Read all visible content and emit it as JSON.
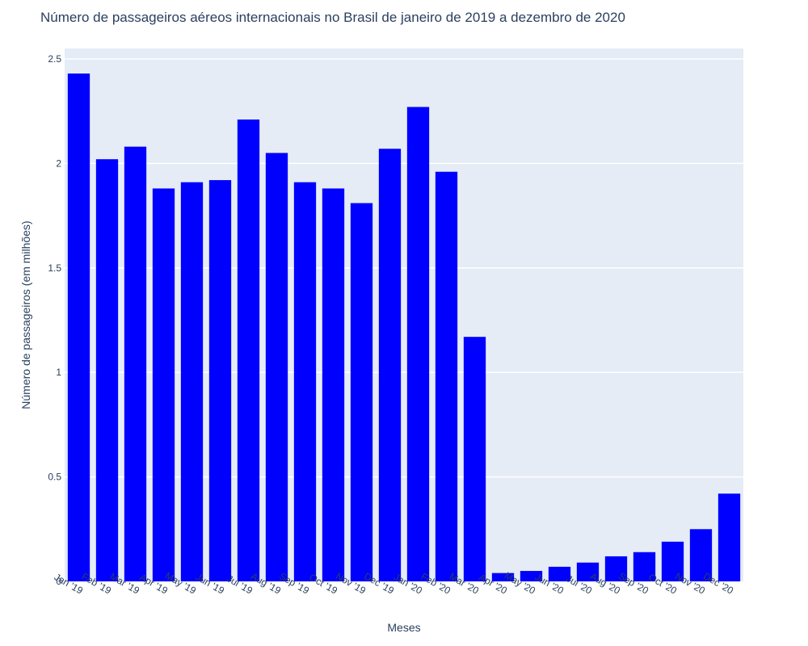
{
  "chart_data": {
    "type": "bar",
    "title": "Número de passageiros aéreos internacionais no Brasil de janeiro de 2019 a dezembro de 2020",
    "xlabel": "Meses",
    "ylabel": "Número de passageiros (em milhões)",
    "categories": [
      "Jan '19",
      "Feb '19",
      "Mar '19",
      "Apr '19",
      "May '19",
      "Jun '19",
      "Jul '19",
      "Aug '19",
      "Sep '19",
      "Oct '19",
      "Nov '19",
      "Dec '19",
      "Jan '20",
      "Feb '20",
      "Mar '20",
      "Apr '20",
      "May '20",
      "Jun '20",
      "Jul '20",
      "Aug '20",
      "Sep '20",
      "Oct '20",
      "Nov '20",
      "Dec '20"
    ],
    "values": [
      2.43,
      2.02,
      2.08,
      1.88,
      1.91,
      1.92,
      2.21,
      2.05,
      1.91,
      1.88,
      1.81,
      2.07,
      2.27,
      1.96,
      1.17,
      0.04,
      0.05,
      0.07,
      0.09,
      0.12,
      0.14,
      0.19,
      0.25,
      0.42
    ],
    "ylim": [
      0,
      2.55
    ],
    "yticks": [
      0,
      0.5,
      1,
      1.5,
      2,
      2.5
    ],
    "ytick_labels": [
      "0",
      "0.5",
      "1",
      "1.5",
      "2",
      "2.5"
    ],
    "grid": true,
    "colors": {
      "bar": "#0000ff",
      "plot_bg": "#e5ecf6",
      "grid": "#ffffff",
      "text": "#2a3f5f"
    }
  }
}
